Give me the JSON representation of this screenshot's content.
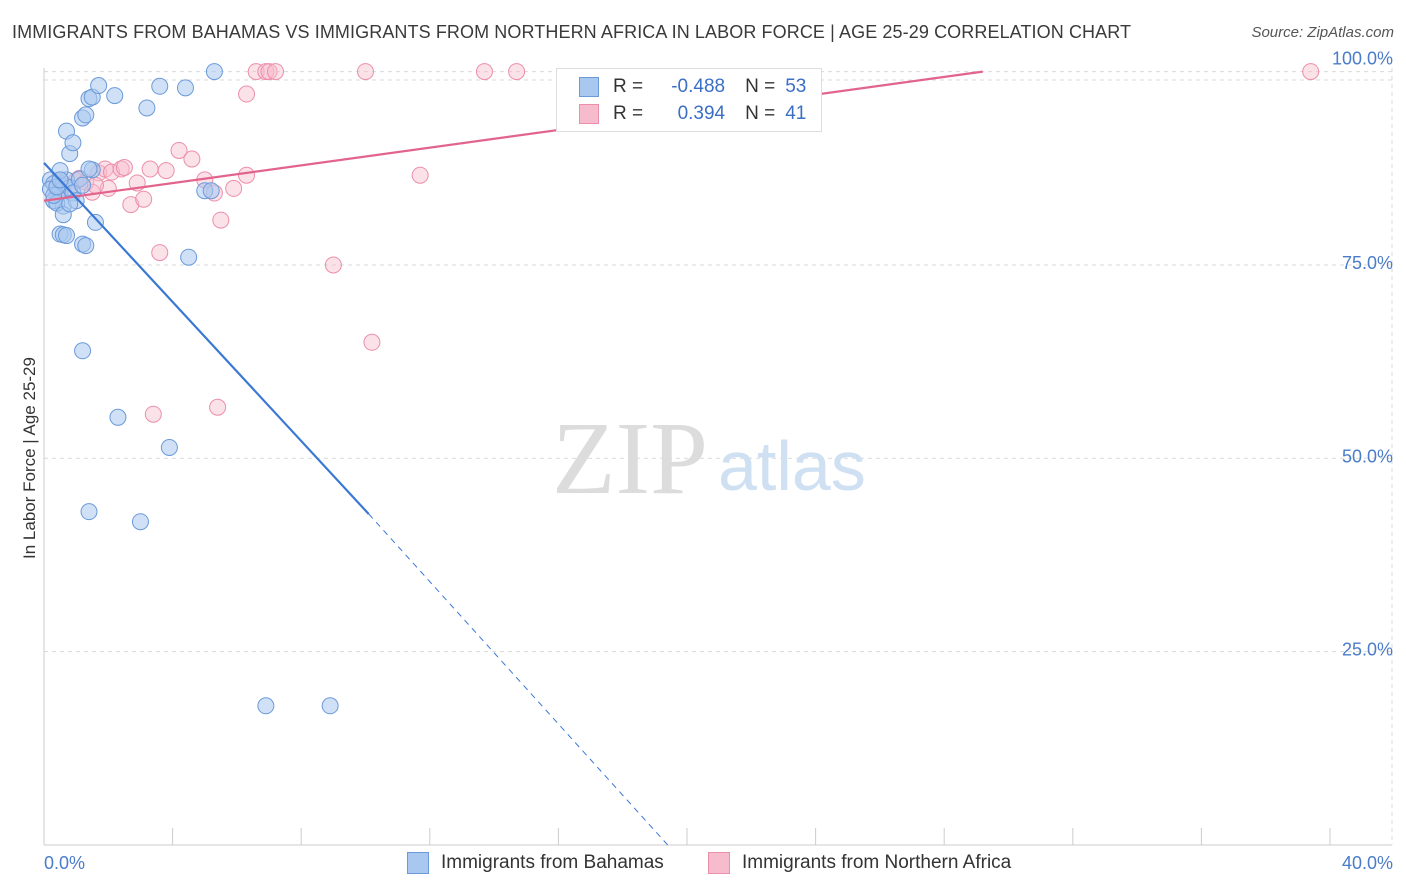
{
  "title": "IMMIGRANTS FROM BAHAMAS VS IMMIGRANTS FROM NORTHERN AFRICA IN LABOR FORCE | AGE 25-29 CORRELATION CHART",
  "source": "Source: ZipAtlas.com",
  "watermark": {
    "zip": "ZIP",
    "atlas": "atlas"
  },
  "legend": {
    "bahamas": {
      "r_label": "R =",
      "r_value": "-0.488",
      "n_label": "N =",
      "n_value": "53"
    },
    "nafrica": {
      "r_label": "R =",
      "r_value": "0.394",
      "n_label": "N =",
      "n_value": "41"
    }
  },
  "colors": {
    "blue_fill": "#a9c8f0",
    "blue_stroke": "#6b9ad8",
    "blue_line": "#3a78d4",
    "pink_fill": "#f6bccd",
    "pink_stroke": "#ec8fab",
    "pink_line": "#e2648c",
    "grid": "#d9d9d9",
    "axis": "#cccccc"
  },
  "chart_data": {
    "type": "scatter",
    "title": "IMMIGRANTS FROM BAHAMAS VS IMMIGRANTS FROM NORTHERN AFRICA IN LABOR FORCE | AGE 25-29 CORRELATION CHART",
    "xlabel": "",
    "ylabel": "In Labor Force | Age 25-29",
    "xlim": [
      0,
      40
    ],
    "ylim": [
      0,
      101.5
    ],
    "x_tick_labels": [
      "0.0%",
      "40.0%"
    ],
    "y_ticks": [
      25,
      50,
      75,
      100
    ],
    "y_tick_labels": [
      "25.0%",
      "50.0%",
      "75.0%",
      "100.0%"
    ],
    "series": [
      {
        "name": "Immigrants from Bahamas",
        "color": "#a9c8f0",
        "points": [
          [
            0.2,
            86.0
          ],
          [
            0.3,
            85.5
          ],
          [
            0.2,
            84.8
          ],
          [
            0.4,
            84.0
          ],
          [
            0.3,
            83.3
          ],
          [
            0.6,
            85.5
          ],
          [
            0.5,
            84.5
          ],
          [
            0.7,
            86.0
          ],
          [
            0.8,
            85.0
          ],
          [
            0.6,
            82.6
          ],
          [
            0.9,
            84.3
          ],
          [
            1.0,
            83.3
          ],
          [
            0.3,
            83.3
          ],
          [
            0.4,
            83.0
          ],
          [
            0.5,
            87.2
          ],
          [
            1.1,
            86.1
          ],
          [
            0.6,
            81.5
          ],
          [
            0.8,
            82.9
          ],
          [
            1.5,
            87.3
          ],
          [
            1.4,
            87.4
          ],
          [
            0.7,
            92.3
          ],
          [
            0.8,
            89.4
          ],
          [
            0.9,
            90.8
          ],
          [
            1.2,
            94.0
          ],
          [
            1.3,
            94.4
          ],
          [
            1.4,
            96.5
          ],
          [
            1.5,
            96.7
          ],
          [
            1.7,
            98.2
          ],
          [
            2.2,
            96.9
          ],
          [
            3.2,
            95.3
          ],
          [
            3.6,
            98.1
          ],
          [
            4.4,
            97.9
          ],
          [
            5.3,
            100.0
          ],
          [
            5.0,
            84.6
          ],
          [
            5.2,
            84.6
          ],
          [
            1.6,
            80.5
          ],
          [
            0.5,
            79.0
          ],
          [
            0.6,
            78.9
          ],
          [
            0.7,
            78.8
          ],
          [
            1.2,
            77.7
          ],
          [
            1.3,
            77.5
          ],
          [
            4.5,
            76.0
          ],
          [
            1.2,
            63.9
          ],
          [
            2.3,
            55.3
          ],
          [
            3.9,
            51.4
          ],
          [
            1.4,
            43.1
          ],
          [
            3.0,
            41.8
          ],
          [
            6.9,
            18.0
          ],
          [
            8.9,
            18.0
          ],
          [
            0.3,
            84.0
          ],
          [
            0.4,
            85.1
          ],
          [
            1.2,
            85.3
          ],
          [
            0.5,
            86.0
          ]
        ]
      },
      {
        "name": "Immigrants from Northern Africa",
        "color": "#f6bccd",
        "points": [
          [
            0.4,
            85.8
          ],
          [
            0.6,
            85.2
          ],
          [
            0.8,
            84.6
          ],
          [
            1.0,
            85.9
          ],
          [
            1.1,
            86.2
          ],
          [
            1.3,
            85.7
          ],
          [
            1.5,
            84.4
          ],
          [
            1.7,
            86.9
          ],
          [
            1.9,
            87.4
          ],
          [
            2.1,
            87.0
          ],
          [
            2.4,
            87.4
          ],
          [
            2.5,
            87.6
          ],
          [
            2.7,
            82.8
          ],
          [
            2.9,
            85.6
          ],
          [
            3.1,
            83.5
          ],
          [
            3.3,
            87.4
          ],
          [
            3.8,
            87.2
          ],
          [
            4.2,
            89.8
          ],
          [
            4.6,
            88.7
          ],
          [
            5.0,
            86.0
          ],
          [
            5.3,
            84.3
          ],
          [
            5.5,
            80.8
          ],
          [
            5.9,
            84.9
          ],
          [
            6.3,
            86.6
          ],
          [
            6.3,
            97.1
          ],
          [
            6.6,
            100.0
          ],
          [
            6.9,
            100.0
          ],
          [
            7.0,
            100.0
          ],
          [
            7.2,
            100.0
          ],
          [
            10.0,
            100.0
          ],
          [
            13.7,
            100.0
          ],
          [
            14.7,
            100.0
          ],
          [
            39.4,
            100.0
          ],
          [
            11.7,
            86.6
          ],
          [
            3.6,
            76.6
          ],
          [
            9.0,
            75.0
          ],
          [
            10.2,
            65.0
          ],
          [
            5.4,
            56.6
          ],
          [
            3.4,
            55.7
          ],
          [
            2.0,
            84.9
          ],
          [
            1.6,
            85.3
          ]
        ]
      }
    ],
    "trend_lines": [
      {
        "series": "Immigrants from Bahamas",
        "x0": 0.0,
        "y0": 88.2,
        "x1": 10.1,
        "y1": 42.8,
        "dashed_to_x": 19.4,
        "dashed_to_y": 0.0
      },
      {
        "series": "Immigrants from Northern Africa",
        "x0": 0.0,
        "y0": 83.3,
        "x1": 29.2,
        "y1": 100.0
      }
    ]
  }
}
